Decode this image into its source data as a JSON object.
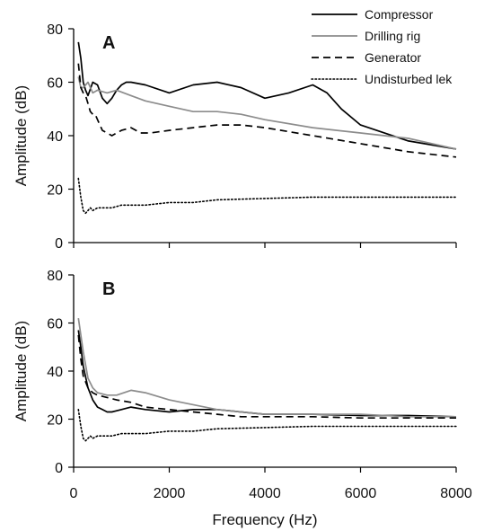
{
  "chart_data": [
    {
      "type": "line",
      "panel_label": "A",
      "xlabel": "",
      "ylabel": "Amplitude (dB)",
      "xlim": [
        0,
        8000
      ],
      "ylim": [
        0,
        80
      ],
      "x_ticks": [
        0,
        2000,
        4000,
        6000,
        8000
      ],
      "y_ticks": [
        0,
        20,
        40,
        60,
        80
      ],
      "x_tick_labels_visible": false,
      "grid": false,
      "legend": "top-right",
      "series": [
        {
          "name": "Compressor",
          "color": "#000000",
          "dash": "solid",
          "x": [
            100,
            150,
            200,
            250,
            300,
            400,
            500,
            600,
            700,
            800,
            900,
            1000,
            1100,
            1200,
            1500,
            2000,
            2500,
            3000,
            3500,
            4000,
            4500,
            5000,
            5300,
            5600,
            6000,
            7000,
            8000
          ],
          "y": [
            75,
            69,
            60,
            57,
            55,
            60,
            59,
            54,
            52,
            54,
            57,
            59,
            60,
            60,
            59,
            56,
            59,
            60,
            58,
            54,
            56,
            59,
            56,
            50,
            44,
            38,
            35
          ]
        },
        {
          "name": "Drilling rig",
          "color": "#8c8c8c",
          "dash": "solid",
          "x": [
            100,
            150,
            200,
            300,
            400,
            500,
            700,
            900,
            1200,
            1500,
            2000,
            2500,
            3000,
            3500,
            4000,
            5000,
            6000,
            7000,
            8000
          ],
          "y": [
            62,
            58,
            58,
            60,
            56,
            57,
            56,
            57,
            55,
            53,
            51,
            49,
            49,
            48,
            46,
            43,
            41,
            39,
            35
          ]
        },
        {
          "name": "Generator",
          "color": "#000000",
          "dash": "dashed",
          "x": [
            100,
            150,
            200,
            250,
            300,
            350,
            400,
            450,
            500,
            600,
            700,
            800,
            900,
            1000,
            1200,
            1400,
            1600,
            2000,
            2500,
            3000,
            3500,
            4000,
            5000,
            6000,
            7000,
            8000
          ],
          "y": [
            67,
            58,
            56,
            55,
            52,
            49,
            48,
            48,
            46,
            42,
            41,
            40,
            41,
            42,
            43,
            41,
            41,
            42,
            43,
            44,
            44,
            43,
            40,
            37,
            34,
            32
          ]
        },
        {
          "name": "Undisturbed lek",
          "color": "#000000",
          "dash": "dotted",
          "x": [
            100,
            150,
            200,
            250,
            300,
            350,
            400,
            500,
            600,
            800,
            1000,
            1500,
            2000,
            2500,
            3000,
            4000,
            5000,
            6000,
            7000,
            8000
          ],
          "y": [
            24,
            17,
            12,
            11,
            12,
            13,
            12,
            13,
            13,
            13,
            14,
            14,
            15,
            15,
            16,
            16.5,
            17,
            17,
            17,
            17
          ]
        }
      ]
    },
    {
      "type": "line",
      "panel_label": "B",
      "xlabel": "Frequency (Hz)",
      "ylabel": "Amplitude (dB)",
      "xlim": [
        0,
        8000
      ],
      "ylim": [
        0,
        80
      ],
      "x_ticks": [
        0,
        2000,
        4000,
        6000,
        8000
      ],
      "y_ticks": [
        0,
        20,
        40,
        60,
        80
      ],
      "x_tick_labels_visible": true,
      "grid": false,
      "series": [
        {
          "name": "Compressor",
          "color": "#000000",
          "dash": "solid",
          "x": [
            100,
            150,
            200,
            300,
            400,
            500,
            600,
            700,
            800,
            1000,
            1200,
            1500,
            2000,
            2500,
            3000,
            3500,
            4000,
            5000,
            6000,
            7000,
            8000
          ],
          "y": [
            57,
            50,
            42,
            33,
            28,
            25,
            24,
            23,
            23,
            24,
            25,
            24,
            23,
            24,
            24,
            23,
            22,
            22,
            21.5,
            21.5,
            21
          ]
        },
        {
          "name": "Drilling rig",
          "color": "#8c8c8c",
          "dash": "solid",
          "x": [
            100,
            150,
            200,
            300,
            400,
            500,
            700,
            900,
            1200,
            1500,
            2000,
            2500,
            3000,
            3500,
            4000,
            5000,
            6000,
            7000,
            8000
          ],
          "y": [
            62,
            55,
            48,
            37,
            33,
            31,
            30,
            30,
            32,
            31,
            28,
            26,
            24,
            23,
            22,
            22,
            22,
            21,
            21
          ]
        },
        {
          "name": "Generator",
          "color": "#000000",
          "dash": "dashed",
          "x": [
            100,
            150,
            200,
            300,
            400,
            500,
            700,
            900,
            1200,
            1500,
            2000,
            2500,
            3000,
            3500,
            4000,
            5000,
            6000,
            7000,
            8000
          ],
          "y": [
            55,
            45,
            38,
            33,
            31,
            30,
            29,
            28,
            27,
            25,
            24,
            23,
            22,
            21,
            21,
            21,
            20.5,
            20.5,
            20.5
          ]
        },
        {
          "name": "Undisturbed lek",
          "color": "#000000",
          "dash": "dotted",
          "x": [
            100,
            150,
            200,
            250,
            300,
            350,
            400,
            500,
            600,
            800,
            1000,
            1500,
            2000,
            2500,
            3000,
            4000,
            5000,
            6000,
            7000,
            8000
          ],
          "y": [
            24,
            17,
            12,
            11,
            12,
            13,
            12,
            13,
            13,
            13,
            14,
            14,
            15,
            15,
            16,
            16.5,
            17,
            17,
            17,
            17
          ]
        }
      ]
    }
  ]
}
